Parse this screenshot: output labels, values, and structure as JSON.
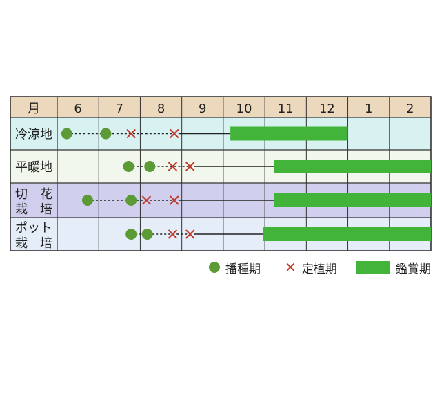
{
  "chart_data": {
    "type": "gantt",
    "corner_label": "月",
    "months": [
      "6",
      "7",
      "8",
      "9",
      "10",
      "11",
      "12",
      "1",
      "2"
    ],
    "month_axis_note": "positions expressed as month number + fraction; months 1 and 2 of the following year written as 13 and 14",
    "rows": [
      {
        "label": [
          "冷涼地"
        ],
        "bg": "#d8f2f2",
        "sowing": [
          6.23,
          7.17
        ],
        "planting": [
          7.78,
          8.82
        ],
        "bloom": [
          10.17,
          13.0
        ]
      },
      {
        "label": [
          "平暖地"
        ],
        "bg": "#f1f7ec",
        "sowing": [
          7.72,
          8.23
        ],
        "planting": [
          8.78,
          9.2
        ],
        "bloom": [
          11.22,
          15.0
        ]
      },
      {
        "label": [
          "切　花",
          "栽　培"
        ],
        "bg": "#d0d0ee",
        "sowing": [
          6.73,
          7.78
        ],
        "planting": [
          8.15,
          8.82
        ],
        "bloom": [
          11.22,
          15.0
        ]
      },
      {
        "label": [
          "ポット",
          "栽　培"
        ],
        "bg": "#e5edf8",
        "sowing": [
          7.78,
          8.17
        ],
        "planting": [
          8.78,
          9.2
        ],
        "bloom": [
          10.95,
          15.0
        ]
      }
    ],
    "legend": {
      "sowing": "播種期",
      "planting": "定植期",
      "bloom": "鑑賞期"
    },
    "colors": {
      "header_bg": "#ecd8bd",
      "sowing": "#5b9a35",
      "planting": "#c0392b",
      "bloom": "#43b43a",
      "grid": "#333333"
    }
  }
}
